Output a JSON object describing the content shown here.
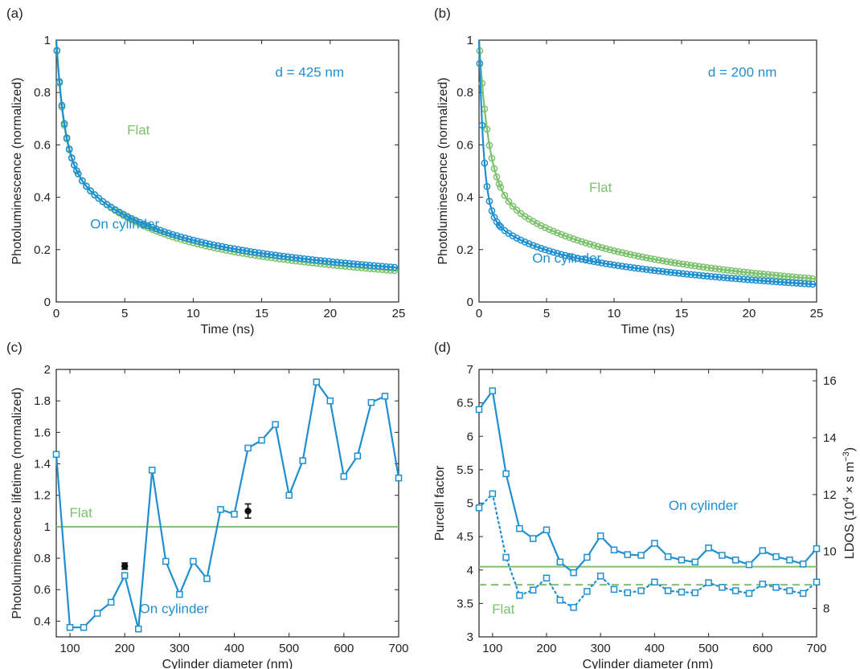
{
  "colors": {
    "blue": "#1f8fd0",
    "green": "#7cc16e",
    "black": "#111111",
    "axis": "#262626"
  },
  "chart_data": [
    {
      "panel": "(a)",
      "type": "line",
      "xlabel": "Time (ns)",
      "ylabel": "Photoluminescence (normalized)",
      "xlim": [
        0,
        25
      ],
      "ylim": [
        0,
        1
      ],
      "xticks": [
        "0",
        "5",
        "10",
        "15",
        "20",
        "25"
      ],
      "yticks": [
        "0",
        "0.2",
        "0.4",
        "0.6",
        "0.8",
        "1"
      ],
      "annotations": [
        {
          "text": "d = 425 nm",
          "color": "blue",
          "x": 18.5,
          "y": 0.86
        },
        {
          "text": "Flat",
          "color": "green",
          "x": 6.0,
          "y": 0.64
        },
        {
          "text": "On cylinder",
          "color": "blue",
          "x": 5.0,
          "y": 0.28
        }
      ],
      "series": [
        {
          "label_ref": "Flat",
          "color": "green",
          "marker": "circle",
          "decay": {
            "a": [
              0.43,
              0.3,
              0.27
            ],
            "tau": [
              0.55,
              4.5,
              30
            ]
          }
        },
        {
          "label_ref": "On cylinder",
          "color": "blue",
          "marker": "circle",
          "decay": {
            "a": [
              0.45,
              0.28,
              0.27
            ],
            "tau": [
              0.6,
              4.8,
              34
            ]
          }
        }
      ]
    },
    {
      "panel": "(b)",
      "type": "line",
      "xlabel": "Time (ns)",
      "ylabel": "Photoluminescence (normalized)",
      "xlim": [
        0,
        25
      ],
      "ylim": [
        0,
        1
      ],
      "xticks": [
        "0",
        "5",
        "10",
        "15",
        "20",
        "25"
      ],
      "yticks": [
        "0",
        "0.2",
        "0.4",
        "0.6",
        "0.8",
        "1"
      ],
      "annotations": [
        {
          "text": "d = 200 nm",
          "color": "blue",
          "x": 19.5,
          "y": 0.86
        },
        {
          "text": "Flat",
          "color": "green",
          "x": 9.0,
          "y": 0.42
        },
        {
          "text": "On cylinder",
          "color": "blue",
          "x": 6.5,
          "y": 0.15
        }
      ],
      "series": [
        {
          "label_ref": "Flat",
          "color": "green",
          "marker": "circle",
          "decay": {
            "a": [
              0.55,
              0.18,
              0.27
            ],
            "tau": [
              0.7,
              5.0,
              22
            ]
          }
        },
        {
          "label_ref": "On cylinder",
          "color": "blue",
          "marker": "circle",
          "decay": {
            "a": [
              0.65,
              0.13,
              0.22
            ],
            "tau": [
              0.35,
              3.0,
              21
            ]
          }
        }
      ]
    },
    {
      "panel": "(c)",
      "type": "line",
      "xlabel": "Cylinder diameter (nm)",
      "ylabel": "Photoluminescence lifetime (normalized)",
      "xlim": [
        75,
        700
      ],
      "ylim": [
        0.3,
        2
      ],
      "xticks": [
        "100",
        "200",
        "300",
        "400",
        "500",
        "600",
        "700"
      ],
      "yticks": [
        "0.4",
        "0.6",
        "0.8",
        "1",
        "1.2",
        "1.4",
        "1.6",
        "1.8",
        "2"
      ],
      "annotations": [
        {
          "text": "Flat",
          "color": "green",
          "x": 120,
          "y": 1.06
        },
        {
          "text": "On cylinder",
          "color": "blue",
          "x": 290,
          "y": 0.45
        }
      ],
      "hlines": [
        {
          "y": 1.0,
          "color": "green",
          "style": "solid"
        }
      ],
      "series": [
        {
          "label_ref": "On cylinder",
          "color": "blue",
          "marker": "square",
          "x": [
            75,
            100,
            125,
            150,
            175,
            200,
            225,
            250,
            275,
            300,
            325,
            350,
            375,
            400,
            425,
            450,
            475,
            500,
            525,
            550,
            575,
            600,
            625,
            650,
            675,
            700
          ],
          "y": [
            1.46,
            0.36,
            0.36,
            0.45,
            0.52,
            0.69,
            0.35,
            1.36,
            0.78,
            0.57,
            0.78,
            0.67,
            1.11,
            1.08,
            1.5,
            1.55,
            1.65,
            1.2,
            1.42,
            1.92,
            1.8,
            1.32,
            1.45,
            1.79,
            1.83,
            1.31
          ]
        },
        {
          "label_ref": "measured",
          "color": "black",
          "marker": "dot",
          "x": [
            200,
            425
          ],
          "y": [
            0.75,
            1.1
          ],
          "err": [
            0.02,
            0.045
          ]
        }
      ]
    },
    {
      "panel": "(d)",
      "type": "line",
      "xlabel": "Cylinder diameter (nm)",
      "ylabel": "Purcell factor",
      "y2label": "LDOS (10^4 × s m^-3)",
      "xlim": [
        75,
        700
      ],
      "ylim": [
        3,
        7
      ],
      "y2lim": [
        7,
        16.4
      ],
      "xticks": [
        "100",
        "200",
        "300",
        "400",
        "500",
        "600",
        "700"
      ],
      "yticks": [
        "3",
        "3.5",
        "4",
        "4.5",
        "5",
        "5.5",
        "6",
        "6.5",
        "7"
      ],
      "y2ticks": [
        "8",
        "10",
        "12",
        "14",
        "16"
      ],
      "annotations": [
        {
          "text": "On cylinder",
          "color": "blue",
          "x": 490,
          "y": 4.9
        },
        {
          "text": "Flat",
          "color": "green",
          "x": 120,
          "y": 3.35
        }
      ],
      "hlines": [
        {
          "y": 4.05,
          "color": "green",
          "style": "solid"
        },
        {
          "y": 3.78,
          "color": "green",
          "style": "dashed"
        }
      ],
      "series": [
        {
          "label_ref": "Purcell factor",
          "color": "blue",
          "marker": "square",
          "style": "solid",
          "x": [
            75,
            100,
            125,
            150,
            175,
            200,
            225,
            250,
            275,
            300,
            325,
            350,
            375,
            400,
            425,
            450,
            475,
            500,
            525,
            550,
            575,
            600,
            625,
            650,
            675,
            700
          ],
          "y": [
            6.4,
            6.68,
            5.44,
            4.62,
            4.47,
            4.6,
            4.12,
            3.96,
            4.19,
            4.51,
            4.3,
            4.23,
            4.22,
            4.4,
            4.2,
            4.15,
            4.12,
            4.33,
            4.22,
            4.15,
            4.08,
            4.29,
            4.2,
            4.15,
            4.09,
            4.32
          ]
        },
        {
          "label_ref": "LDOS",
          "color": "blue",
          "marker": "square",
          "style": "dotted",
          "x": [
            75,
            100,
            125,
            150,
            175,
            200,
            225,
            250,
            275,
            300,
            325,
            350,
            375,
            400,
            425,
            450,
            475,
            500,
            525,
            550,
            575,
            600,
            625,
            650,
            675,
            700
          ],
          "y": [
            4.93,
            5.14,
            4.19,
            3.62,
            3.7,
            3.88,
            3.55,
            3.44,
            3.68,
            3.91,
            3.71,
            3.66,
            3.69,
            3.82,
            3.69,
            3.67,
            3.66,
            3.81,
            3.74,
            3.69,
            3.65,
            3.79,
            3.74,
            3.69,
            3.65,
            3.82
          ]
        }
      ]
    }
  ]
}
